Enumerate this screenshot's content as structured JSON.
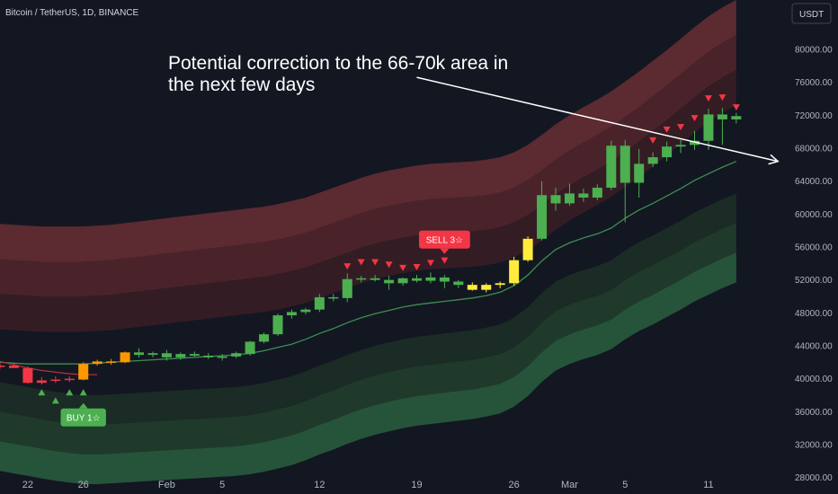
{
  "chart_data": {
    "type": "candlestick",
    "title": "Bitcoin / TetherUS, 1D, BINANCE",
    "currency": "USDT",
    "ylim": [
      26000,
      86000
    ],
    "y_ticks": [
      28000,
      32000,
      36000,
      40000,
      44000,
      48000,
      52000,
      56000,
      60000,
      64000,
      68000,
      72000,
      76000,
      80000
    ],
    "y_tick_labels": [
      "28000.00",
      "32000.00",
      "36000.00",
      "40000.00",
      "44000.00",
      "48000.00",
      "52000.00",
      "56000.00",
      "60000.00",
      "64000.00",
      "68000.00",
      "72000.00",
      "76000.00",
      "80000.00"
    ],
    "x_tick_labels": [
      {
        "label": "22",
        "index": 2
      },
      {
        "label": "26",
        "index": 6
      },
      {
        "label": "Feb",
        "index": 12
      },
      {
        "label": "5",
        "index": 16
      },
      {
        "label": "12",
        "index": 23
      },
      {
        "label": "19",
        "index": 30
      },
      {
        "label": "26",
        "index": 37
      },
      {
        "label": "Mar",
        "index": 41
      },
      {
        "label": "5",
        "index": 45
      },
      {
        "label": "11",
        "index": 51
      }
    ],
    "candles": [
      {
        "o": 41500,
        "h": 41900,
        "l": 41200,
        "c": 41600,
        "color": "#f23645"
      },
      {
        "o": 41600,
        "h": 41900,
        "l": 41300,
        "c": 41300,
        "color": "#f23645"
      },
      {
        "o": 41300,
        "h": 41500,
        "l": 39400,
        "c": 39500,
        "color": "#f23645"
      },
      {
        "o": 39500,
        "h": 40200,
        "l": 39300,
        "c": 39800,
        "color": "#f23645"
      },
      {
        "o": 39800,
        "h": 40300,
        "l": 39500,
        "c": 39900,
        "color": "#f23645"
      },
      {
        "o": 39900,
        "h": 40300,
        "l": 39600,
        "c": 40000,
        "color": "#f23645"
      },
      {
        "o": 39900,
        "h": 42000,
        "l": 39800,
        "c": 41800,
        "color": "#ff9800"
      },
      {
        "o": 41800,
        "h": 42300,
        "l": 41600,
        "c": 42100,
        "color": "#ff9800"
      },
      {
        "o": 42100,
        "h": 42400,
        "l": 41700,
        "c": 42000,
        "color": "#ff9800"
      },
      {
        "o": 42000,
        "h": 43300,
        "l": 41900,
        "c": 43200,
        "color": "#ff9800"
      },
      {
        "o": 43200,
        "h": 43700,
        "l": 42600,
        "c": 42900,
        "color": "#4caf50"
      },
      {
        "o": 42900,
        "h": 43300,
        "l": 42600,
        "c": 43100,
        "color": "#4caf50"
      },
      {
        "o": 43100,
        "h": 43500,
        "l": 42200,
        "c": 42600,
        "color": "#4caf50"
      },
      {
        "o": 42600,
        "h": 43200,
        "l": 42300,
        "c": 43000,
        "color": "#4caf50"
      },
      {
        "o": 43000,
        "h": 43300,
        "l": 42700,
        "c": 42800,
        "color": "#4caf50"
      },
      {
        "o": 42800,
        "h": 43100,
        "l": 42400,
        "c": 42600,
        "color": "#4caf50"
      },
      {
        "o": 42600,
        "h": 43000,
        "l": 42200,
        "c": 42700,
        "color": "#4caf50"
      },
      {
        "o": 42700,
        "h": 43300,
        "l": 42500,
        "c": 43100,
        "color": "#4caf50"
      },
      {
        "o": 43000,
        "h": 44600,
        "l": 42800,
        "c": 44500,
        "color": "#4caf50"
      },
      {
        "o": 44500,
        "h": 45600,
        "l": 44300,
        "c": 45400,
        "color": "#4caf50"
      },
      {
        "o": 45400,
        "h": 47900,
        "l": 45200,
        "c": 47700,
        "color": "#4caf50"
      },
      {
        "o": 47700,
        "h": 48400,
        "l": 47300,
        "c": 48100,
        "color": "#4caf50"
      },
      {
        "o": 48100,
        "h": 48600,
        "l": 47800,
        "c": 48400,
        "color": "#4caf50"
      },
      {
        "o": 48400,
        "h": 50300,
        "l": 48100,
        "c": 49900,
        "color": "#4caf50"
      },
      {
        "o": 49900,
        "h": 50300,
        "l": 49400,
        "c": 49800,
        "color": "#4caf50"
      },
      {
        "o": 49800,
        "h": 52800,
        "l": 49300,
        "c": 52100,
        "color": "#4caf50"
      },
      {
        "o": 52100,
        "h": 52500,
        "l": 51700,
        "c": 52200,
        "color": "#4caf50"
      },
      {
        "o": 52200,
        "h": 52600,
        "l": 51800,
        "c": 52000,
        "color": "#4caf50"
      },
      {
        "o": 52000,
        "h": 52500,
        "l": 50800,
        "c": 51600,
        "color": "#4caf50"
      },
      {
        "o": 51600,
        "h": 52300,
        "l": 51300,
        "c": 52200,
        "color": "#4caf50"
      },
      {
        "o": 52200,
        "h": 52600,
        "l": 51700,
        "c": 51900,
        "color": "#4caf50"
      },
      {
        "o": 51900,
        "h": 52900,
        "l": 51600,
        "c": 52300,
        "color": "#4caf50"
      },
      {
        "o": 52300,
        "h": 52600,
        "l": 51000,
        "c": 51800,
        "color": "#4caf50"
      },
      {
        "o": 51800,
        "h": 52000,
        "l": 51000,
        "c": 51400,
        "color": "#4caf50"
      },
      {
        "o": 51400,
        "h": 51700,
        "l": 50700,
        "c": 50800,
        "color": "#ffeb3b"
      },
      {
        "o": 50800,
        "h": 51600,
        "l": 50500,
        "c": 51400,
        "color": "#ffeb3b"
      },
      {
        "o": 51400,
        "h": 51800,
        "l": 51000,
        "c": 51600,
        "color": "#ffeb3b"
      },
      {
        "o": 51600,
        "h": 54800,
        "l": 51300,
        "c": 54400,
        "color": "#ffeb3b"
      },
      {
        "o": 54400,
        "h": 57300,
        "l": 54200,
        "c": 57000,
        "color": "#ffeb3b"
      },
      {
        "o": 57000,
        "h": 64000,
        "l": 56800,
        "c": 62300,
        "color": "#4caf50"
      },
      {
        "o": 62300,
        "h": 63200,
        "l": 60400,
        "c": 61300,
        "color": "#4caf50"
      },
      {
        "o": 61300,
        "h": 63700,
        "l": 61000,
        "c": 62500,
        "color": "#4caf50"
      },
      {
        "o": 62500,
        "h": 63100,
        "l": 61500,
        "c": 62000,
        "color": "#4caf50"
      },
      {
        "o": 62000,
        "h": 63600,
        "l": 61700,
        "c": 63200,
        "color": "#4caf50"
      },
      {
        "o": 63200,
        "h": 68900,
        "l": 62900,
        "c": 68300,
        "color": "#4caf50"
      },
      {
        "o": 68300,
        "h": 69000,
        "l": 59000,
        "c": 63800,
        "color": "#4caf50"
      },
      {
        "o": 63800,
        "h": 67900,
        "l": 62000,
        "c": 66100,
        "color": "#4caf50"
      },
      {
        "o": 66100,
        "h": 67500,
        "l": 65700,
        "c": 66900,
        "color": "#4caf50"
      },
      {
        "o": 66900,
        "h": 68800,
        "l": 66400,
        "c": 68200,
        "color": "#4caf50"
      },
      {
        "o": 68200,
        "h": 69000,
        "l": 67400,
        "c": 68400,
        "color": "#4caf50"
      },
      {
        "o": 68400,
        "h": 70100,
        "l": 67800,
        "c": 68900,
        "color": "#4caf50"
      },
      {
        "o": 68900,
        "h": 72800,
        "l": 67800,
        "c": 72100,
        "color": "#4caf50"
      },
      {
        "o": 72100,
        "h": 72900,
        "l": 68400,
        "c": 71500,
        "color": "#4caf50"
      },
      {
        "o": 71500,
        "h": 72300,
        "l": 71000,
        "c": 71900,
        "color": "#4caf50"
      }
    ],
    "green_line": [
      42000,
      41900,
      41800,
      41800,
      41800,
      41800,
      41800,
      41900,
      42000,
      42100,
      42200,
      42300,
      42400,
      42500,
      42600,
      42700,
      42800,
      42900,
      43100,
      43400,
      43800,
      44200,
      44800,
      45500,
      46100,
      46800,
      47400,
      47900,
      48300,
      48700,
      49000,
      49200,
      49400,
      49600,
      49800,
      50100,
      50500,
      51300,
      52600,
      54300,
      55700,
      56500,
      57100,
      57600,
      58300,
      59500,
      60500,
      61300,
      62200,
      63100,
      64100,
      64900,
      65700,
      66400
    ],
    "red_line_initial": [
      42100,
      41700,
      41300,
      41000,
      40800,
      40600,
      40500,
      40500
    ],
    "red_bands": {
      "upper": [
        58800,
        58700,
        58600,
        58500,
        58500,
        58500,
        58500,
        58600,
        58700,
        58900,
        59100,
        59300,
        59500,
        59700,
        59900,
        60100,
        60300,
        60500,
        60700,
        60900,
        61200,
        61600,
        62000,
        62600,
        63200,
        63800,
        64400,
        64900,
        65300,
        65600,
        65900,
        66100,
        66200,
        66300,
        66400,
        66600,
        66900,
        67500,
        68400,
        69600,
        70900,
        72000,
        73000,
        73900,
        74900,
        76100,
        77300,
        78600,
        79900,
        81300,
        82700,
        84000,
        85100,
        86000
      ],
      "mid": [
        54500,
        54400,
        54300,
        54200,
        54200,
        54200,
        54200,
        54300,
        54400,
        54600,
        54800,
        55000,
        55200,
        55400,
        55600,
        55800,
        56000,
        56200,
        56400,
        56600,
        56900,
        57300,
        57700,
        58300,
        58900,
        59500,
        60100,
        60600,
        61000,
        61300,
        61600,
        61800,
        61900,
        62000,
        62100,
        62300,
        62600,
        63200,
        64100,
        65300,
        66600,
        67700,
        68700,
        69600,
        70600,
        71800,
        73000,
        74300,
        75600,
        77000,
        78400,
        79700,
        80800,
        81700
      ],
      "lower": [
        50300,
        50200,
        50100,
        50000,
        50000,
        50000,
        50000,
        50100,
        50200,
        50400,
        50600,
        50800,
        51000,
        51200,
        51400,
        51600,
        51800,
        52000,
        52200,
        52400,
        52700,
        53100,
        53500,
        54100,
        54700,
        55300,
        55900,
        56400,
        56800,
        57100,
        57400,
        57600,
        57700,
        57800,
        57900,
        58100,
        58400,
        59000,
        59900,
        61100,
        62400,
        63500,
        64500,
        65400,
        66400,
        67600,
        68800,
        70100,
        71400,
        72800,
        74200,
        75500,
        76600,
        77500
      ],
      "base": [
        46000,
        45900,
        45800,
        45700,
        45700,
        45700,
        45700,
        45800,
        45900,
        46100,
        46300,
        46500,
        46700,
        46900,
        47100,
        47300,
        47500,
        47700,
        47900,
        48100,
        48400,
        48800,
        49200,
        49800,
        50400,
        51000,
        51600,
        52100,
        52500,
        52800,
        53100,
        53300,
        53400,
        53500,
        53600,
        53800,
        54100,
        54700,
        55600,
        56800,
        58100,
        59200,
        60200,
        61100,
        62100,
        63300,
        64500,
        65800,
        67100,
        68500,
        69900,
        71200,
        72300,
        73200
      ]
    },
    "green_bands": {
      "top": [
        39600,
        39300,
        39000,
        38700,
        38400,
        38200,
        38000,
        38000,
        38100,
        38200,
        38300,
        38400,
        38500,
        38600,
        38700,
        38800,
        38900,
        39000,
        39200,
        39500,
        39900,
        40300,
        40900,
        41600,
        42200,
        42900,
        43500,
        44000,
        44400,
        44800,
        45100,
        45300,
        45500,
        45700,
        45900,
        46200,
        46600,
        47400,
        48700,
        50400,
        51800,
        52600,
        53200,
        53700,
        54400,
        55600,
        56600,
        57400,
        58300,
        59200,
        60200,
        61000,
        61800,
        62500
      ],
      "mid1": [
        36000,
        35700,
        35400,
        35100,
        34800,
        34600,
        34400,
        34400,
        34500,
        34600,
        34700,
        34800,
        34900,
        35000,
        35100,
        35200,
        35300,
        35400,
        35600,
        35900,
        36300,
        36700,
        37300,
        38000,
        38600,
        39300,
        39900,
        40400,
        40800,
        41200,
        41500,
        41700,
        41900,
        42100,
        42300,
        42600,
        43000,
        43800,
        45100,
        46800,
        48200,
        49000,
        49600,
        50100,
        50800,
        52000,
        53000,
        53800,
        54700,
        55600,
        56600,
        57400,
        58200,
        58900
      ],
      "mid2": [
        32400,
        32100,
        31800,
        31500,
        31200,
        31000,
        30800,
        30800,
        30900,
        31000,
        31100,
        31200,
        31300,
        31400,
        31500,
        31600,
        31700,
        31800,
        32000,
        32300,
        32700,
        33100,
        33700,
        34400,
        35000,
        35700,
        36300,
        36800,
        37200,
        37600,
        37900,
        38100,
        38300,
        38500,
        38700,
        39000,
        39400,
        40200,
        41500,
        43200,
        44600,
        45400,
        46000,
        46500,
        47200,
        48400,
        49400,
        50200,
        51100,
        52000,
        53000,
        53800,
        54600,
        55300
      ],
      "bottom": [
        28800,
        28500,
        28200,
        27900,
        27600,
        27400,
        27200,
        27200,
        27300,
        27400,
        27500,
        27600,
        27700,
        27800,
        27900,
        28000,
        28100,
        28200,
        28400,
        28700,
        29100,
        29500,
        30100,
        30800,
        31400,
        32100,
        32700,
        33200,
        33600,
        34000,
        34300,
        34500,
        34700,
        34900,
        35100,
        35400,
        35800,
        36600,
        37900,
        39600,
        41000,
        41800,
        42400,
        42900,
        43600,
        44800,
        45800,
        46600,
        47500,
        48400,
        49400,
        50200,
        51000,
        51700
      ]
    },
    "buy_triangles": [
      {
        "index": 3,
        "price": 38300
      },
      {
        "index": 4,
        "price": 37300
      },
      {
        "index": 5,
        "price": 38300
      },
      {
        "index": 6,
        "price": 38300
      }
    ],
    "sell_triangles": [
      {
        "index": 25,
        "price": 53700
      },
      {
        "index": 26,
        "price": 54200
      },
      {
        "index": 27,
        "price": 54200
      },
      {
        "index": 28,
        "price": 53900
      },
      {
        "index": 29,
        "price": 53500
      },
      {
        "index": 30,
        "price": 53600
      },
      {
        "index": 31,
        "price": 54100
      },
      {
        "index": 32,
        "price": 54400
      },
      {
        "index": 47,
        "price": 69000
      },
      {
        "index": 48,
        "price": 70300
      },
      {
        "index": 49,
        "price": 70600
      },
      {
        "index": 50,
        "price": 71700
      },
      {
        "index": 51,
        "price": 74100
      },
      {
        "index": 52,
        "price": 74200
      },
      {
        "index": 53,
        "price": 73000
      }
    ],
    "badges": [
      {
        "text": "BUY 1☆",
        "index": 6,
        "price": 35300,
        "color": "#4caf50",
        "pointer": "up"
      },
      {
        "text": "SELL 3☆",
        "index": 32,
        "price": 56900,
        "color": "#f23645",
        "pointer": "down"
      }
    ],
    "annotation": {
      "lines": [
        "Potential correction to the 66-70k area in",
        "the next few days"
      ]
    },
    "arrow": {
      "from": {
        "index": 30,
        "price": 76600
      },
      "to": {
        "index": 56,
        "price": 66400
      }
    }
  }
}
